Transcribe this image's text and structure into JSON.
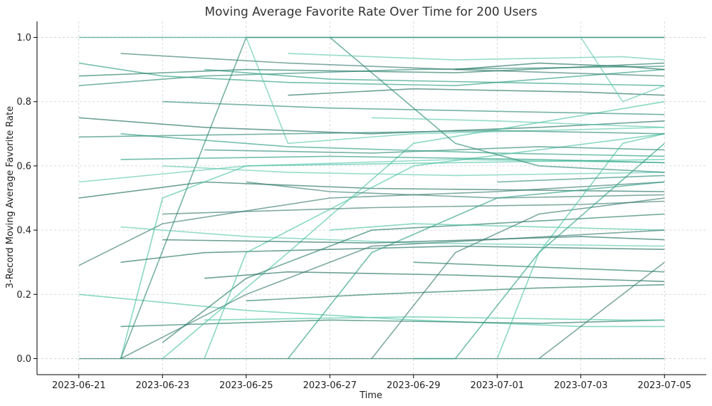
{
  "chart_data": {
    "type": "line",
    "title": "Moving Average Favorite Rate Over Time for 200 Users",
    "xlabel": "Time",
    "ylabel": "3-Record Moving Average Favorite Rate",
    "xlim": [
      "2023-06-20",
      "2023-07-06"
    ],
    "ylim": [
      -0.05,
      1.05
    ],
    "x_ticks": [
      "2023-06-21",
      "2023-06-23",
      "2023-06-25",
      "2023-06-27",
      "2023-06-29",
      "2023-07-01",
      "2023-07-03",
      "2023-07-05"
    ],
    "y_ticks": [
      "0.0",
      "0.2",
      "0.4",
      "0.6",
      "0.8",
      "1.0"
    ],
    "y_tick_values": [
      0,
      0.2,
      0.4,
      0.6,
      0.8,
      1.0
    ],
    "grid": true,
    "series_count": 200,
    "colors": [
      "#2a9d7f",
      "#1f6e5c",
      "#4cc3a2",
      "#2e8b74",
      "#3a7d6e",
      "#5fc9ad",
      "#237a63"
    ],
    "series": [
      {
        "x": [
          "2023-06-21",
          "2023-06-23",
          "2023-06-26",
          "2023-06-30",
          "2023-07-05"
        ],
        "y": [
          0.92,
          0.88,
          0.86,
          0.85,
          0.9
        ]
      },
      {
        "x": [
          "2023-06-21",
          "2023-06-24",
          "2023-06-28",
          "2023-07-02",
          "2023-07-05"
        ],
        "y": [
          0.75,
          0.72,
          0.7,
          0.72,
          0.74
        ]
      },
      {
        "x": [
          "2023-06-21",
          "2023-06-25",
          "2023-06-29",
          "2023-07-03",
          "2023-07-05"
        ],
        "y": [
          0.2,
          0.15,
          0.12,
          0.1,
          0.1
        ]
      },
      {
        "x": [
          "2023-06-21",
          "2023-06-24",
          "2023-06-29",
          "2023-07-05"
        ],
        "y": [
          0.85,
          0.88,
          0.9,
          0.91
        ]
      },
      {
        "x": [
          "2023-06-21",
          "2023-06-23",
          "2023-06-27",
          "2023-07-01",
          "2023-07-05"
        ],
        "y": [
          0.29,
          0.42,
          0.5,
          0.52,
          0.55
        ]
      },
      {
        "x": [
          "2023-06-21",
          "2023-06-25",
          "2023-06-30",
          "2023-07-05"
        ],
        "y": [
          0.55,
          0.6,
          0.62,
          0.61
        ]
      },
      {
        "x": [
          "2023-06-21",
          "2023-06-22",
          "2023-06-26",
          "2023-07-05"
        ],
        "y": [
          0.0,
          0.0,
          0.0,
          0.0
        ]
      },
      {
        "x": [
          "2023-06-21",
          "2023-06-28",
          "2023-07-05"
        ],
        "y": [
          1.0,
          1.0,
          1.0
        ]
      },
      {
        "x": [
          "2023-06-21",
          "2023-06-24",
          "2023-06-28",
          "2023-07-05"
        ],
        "y": [
          0.5,
          0.55,
          0.53,
          0.52
        ]
      },
      {
        "x": [
          "2023-06-22",
          "2023-06-23",
          "2023-06-25",
          "2023-07-05"
        ],
        "y": [
          0.0,
          0.5,
          0.6,
          0.62
        ]
      },
      {
        "x": [
          "2023-06-22",
          "2023-06-24",
          "2023-06-25",
          "2023-07-05"
        ],
        "y": [
          0.0,
          0.67,
          1.0,
          1.0
        ]
      },
      {
        "x": [
          "2023-06-22",
          "2023-06-26",
          "2023-06-30",
          "2023-07-05"
        ],
        "y": [
          0.95,
          0.92,
          0.9,
          0.88
        ]
      },
      {
        "x": [
          "2023-06-22",
          "2023-06-25",
          "2023-06-29",
          "2023-07-05"
        ],
        "y": [
          0.41,
          0.38,
          0.36,
          0.35
        ]
      },
      {
        "x": [
          "2023-06-22",
          "2023-06-27",
          "2023-07-02",
          "2023-07-05"
        ],
        "y": [
          0.1,
          0.12,
          0.11,
          0.12
        ]
      },
      {
        "x": [
          "2023-06-22",
          "2023-06-26",
          "2023-07-01",
          "2023-07-05"
        ],
        "y": [
          0.7,
          0.66,
          0.64,
          0.63
        ]
      },
      {
        "x": [
          "2023-06-22",
          "2023-06-24",
          "2023-06-30",
          "2023-07-05"
        ],
        "y": [
          0.3,
          0.33,
          0.35,
          0.34
        ]
      },
      {
        "x": [
          "2023-06-23",
          "2023-06-26",
          "2023-06-29",
          "2023-07-05"
        ],
        "y": [
          0.0,
          0.33,
          0.67,
          0.8
        ]
      },
      {
        "x": [
          "2023-06-23",
          "2023-06-27",
          "2023-07-01",
          "2023-07-05"
        ],
        "y": [
          0.8,
          0.78,
          0.77,
          0.76
        ]
      },
      {
        "x": [
          "2023-06-23",
          "2023-06-28",
          "2023-07-03",
          "2023-07-05"
        ],
        "y": [
          0.45,
          0.47,
          0.48,
          0.49
        ]
      },
      {
        "x": [
          "2023-06-23",
          "2023-06-26",
          "2023-06-30",
          "2023-07-05"
        ],
        "y": [
          0.6,
          0.58,
          0.57,
          0.58
        ]
      },
      {
        "x": [
          "2023-06-23",
          "2023-06-25",
          "2023-06-28",
          "2023-07-05"
        ],
        "y": [
          0.05,
          0.25,
          0.4,
          0.45
        ]
      },
      {
        "x": [
          "2023-06-24",
          "2023-06-27",
          "2023-07-01",
          "2023-07-05"
        ],
        "y": [
          0.9,
          0.87,
          0.86,
          0.85
        ]
      },
      {
        "x": [
          "2023-06-24",
          "2023-06-26",
          "2023-06-30",
          "2023-07-05"
        ],
        "y": [
          0.25,
          0.27,
          0.26,
          0.24
        ]
      },
      {
        "x": [
          "2023-06-24",
          "2023-06-25",
          "2023-06-29",
          "2023-07-05"
        ],
        "y": [
          0.0,
          0.33,
          0.6,
          0.7
        ]
      },
      {
        "x": [
          "2023-06-24",
          "2023-06-28",
          "2023-07-02",
          "2023-07-05"
        ],
        "y": [
          0.65,
          0.64,
          0.66,
          0.65
        ]
      },
      {
        "x": [
          "2023-06-25",
          "2023-06-27",
          "2023-07-01",
          "2023-07-05"
        ],
        "y": [
          0.55,
          0.52,
          0.5,
          0.51
        ]
      },
      {
        "x": [
          "2023-06-25",
          "2023-06-26",
          "2023-06-29",
          "2023-07-05"
        ],
        "y": [
          1.0,
          0.67,
          0.7,
          0.72
        ]
      },
      {
        "x": [
          "2023-06-25",
          "2023-06-28",
          "2023-07-02",
          "2023-07-05"
        ],
        "y": [
          0.18,
          0.2,
          0.22,
          0.23
        ]
      },
      {
        "x": [
          "2023-06-26",
          "2023-06-28",
          "2023-07-01",
          "2023-07-05"
        ],
        "y": [
          0.0,
          0.33,
          0.5,
          0.55
        ]
      },
      {
        "x": [
          "2023-06-26",
          "2023-06-29",
          "2023-07-03",
          "2023-07-05"
        ],
        "y": [
          0.82,
          0.84,
          0.83,
          0.82
        ]
      },
      {
        "x": [
          "2023-06-27",
          "2023-06-29",
          "2023-07-02",
          "2023-07-05"
        ],
        "y": [
          0.4,
          0.42,
          0.41,
          0.4
        ]
      },
      {
        "x": [
          "2023-06-27",
          "2023-06-30",
          "2023-07-02",
          "2023-07-05"
        ],
        "y": [
          1.0,
          0.67,
          0.6,
          0.58
        ]
      },
      {
        "x": [
          "2023-06-28",
          "2023-06-30",
          "2023-07-02",
          "2023-07-05"
        ],
        "y": [
          0.0,
          0.33,
          0.45,
          0.5
        ]
      },
      {
        "x": [
          "2023-06-28",
          "2023-07-01",
          "2023-07-03",
          "2023-07-05"
        ],
        "y": [
          0.75,
          0.74,
          0.73,
          0.72
        ]
      },
      {
        "x": [
          "2023-06-29",
          "2023-07-01",
          "2023-07-03",
          "2023-07-05"
        ],
        "y": [
          0.3,
          0.29,
          0.28,
          0.27
        ]
      },
      {
        "x": [
          "2023-06-29",
          "2023-06-30",
          "2023-07-02",
          "2023-07-05"
        ],
        "y": [
          0.0,
          0.0,
          0.33,
          0.67
        ]
      },
      {
        "x": [
          "2023-06-30",
          "2023-07-02",
          "2023-07-04",
          "2023-07-05"
        ],
        "y": [
          0.9,
          0.92,
          0.91,
          0.9
        ]
      },
      {
        "x": [
          "2023-07-01",
          "2023-07-02",
          "2023-07-04",
          "2023-07-05"
        ],
        "y": [
          0.0,
          0.33,
          0.67,
          0.7
        ]
      },
      {
        "x": [
          "2023-07-01",
          "2023-07-03",
          "2023-07-05"
        ],
        "y": [
          0.55,
          0.56,
          0.57
        ]
      },
      {
        "x": [
          "2023-07-02",
          "2023-07-04",
          "2023-07-05"
        ],
        "y": [
          0.0,
          0.2,
          0.3
        ]
      },
      {
        "x": [
          "2023-07-03",
          "2023-07-04",
          "2023-07-05"
        ],
        "y": [
          1.0,
          0.8,
          0.85
        ]
      },
      {
        "x": [
          "2023-06-21",
          "2023-06-25",
          "2023-06-30",
          "2023-07-05"
        ],
        "y": [
          0.88,
          0.9,
          0.89,
          0.92
        ]
      },
      {
        "x": [
          "2023-06-22",
          "2023-06-27",
          "2023-07-02",
          "2023-07-05"
        ],
        "y": [
          0.62,
          0.63,
          0.62,
          0.61
        ]
      },
      {
        "x": [
          "2023-06-23",
          "2023-06-28",
          "2023-07-03",
          "2023-07-05"
        ],
        "y": [
          0.37,
          0.36,
          0.38,
          0.37
        ]
      },
      {
        "x": [
          "2023-06-24",
          "2023-06-29",
          "2023-07-04",
          "2023-07-05"
        ],
        "y": [
          0.12,
          0.13,
          0.12,
          0.12
        ]
      },
      {
        "x": [
          "2023-06-21",
          "2023-06-26",
          "2023-07-01",
          "2023-07-05"
        ],
        "y": [
          0.69,
          0.7,
          0.71,
          0.7
        ]
      },
      {
        "x": [
          "2023-06-22",
          "2023-06-25",
          "2023-06-28",
          "2023-07-05"
        ],
        "y": [
          0.0,
          0.2,
          0.35,
          0.4
        ]
      },
      {
        "x": [
          "2023-06-26",
          "2023-06-30",
          "2023-07-04",
          "2023-07-05"
        ],
        "y": [
          0.95,
          0.93,
          0.94,
          0.93
        ]
      }
    ]
  }
}
